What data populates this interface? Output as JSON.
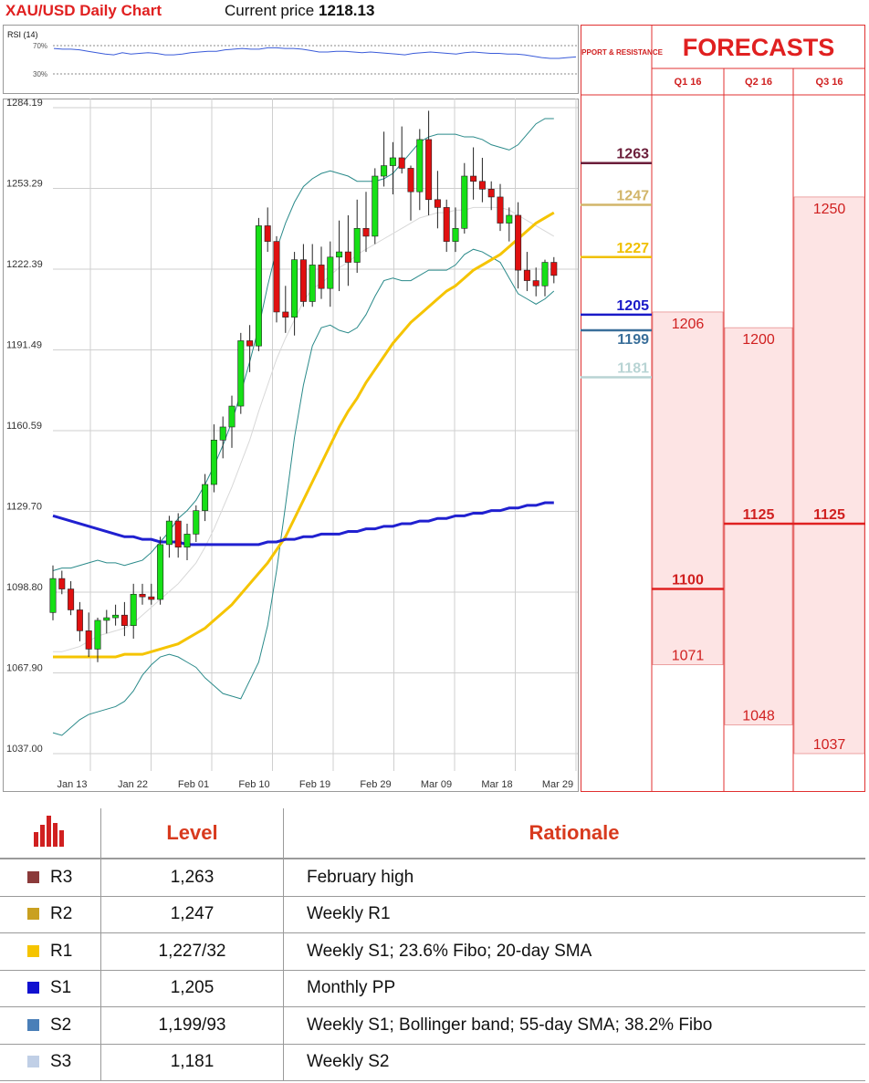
{
  "header": {
    "title": "XAU/USD Daily Chart",
    "price_label": "Current price ",
    "price_value": "1218.13"
  },
  "rsi": {
    "label": "RSI (14)",
    "levels": [
      "70%",
      "30%"
    ],
    "values": [
      66,
      65,
      65,
      64,
      62,
      60,
      58,
      57,
      60,
      58,
      59,
      60,
      59,
      57,
      57,
      58,
      60,
      61,
      62,
      62,
      64,
      65,
      66,
      65,
      65,
      67,
      67,
      66,
      66,
      65,
      63,
      61,
      61,
      62,
      62,
      61,
      60,
      61,
      60,
      59,
      58,
      57,
      59,
      60,
      61,
      60,
      59,
      58,
      60,
      61,
      60,
      59,
      59,
      58,
      58,
      57,
      55,
      53,
      52,
      52,
      53,
      54
    ]
  },
  "chart_data": {
    "type": "candlestick",
    "title": "XAU/USD Daily Chart",
    "y_ticks": [
      "1284.19",
      "1253.29",
      "1222.39",
      "1191.49",
      "1160.59",
      "1129.70",
      "1098.80",
      "1067.90",
      "1037.00"
    ],
    "ylim": [
      1037.0,
      1284.19
    ],
    "x_ticks": [
      "Jan 13",
      "Jan 22",
      "Feb 01",
      "Feb 10",
      "Feb 19",
      "Feb 29",
      "Mar 09",
      "Mar 18",
      "Mar 29"
    ],
    "candles": [
      [
        1091,
        1109,
        1088,
        1104
      ],
      [
        1104,
        1107,
        1098,
        1100
      ],
      [
        1100,
        1103,
        1090,
        1092
      ],
      [
        1092,
        1095,
        1080,
        1084
      ],
      [
        1084,
        1091,
        1074,
        1077
      ],
      [
        1077,
        1089,
        1072,
        1088
      ],
      [
        1088,
        1092,
        1083,
        1089
      ],
      [
        1089,
        1094,
        1086,
        1090
      ],
      [
        1090,
        1095,
        1082,
        1086
      ],
      [
        1086,
        1102,
        1081,
        1098
      ],
      [
        1098,
        1102,
        1094,
        1097
      ],
      [
        1097,
        1102,
        1094,
        1096
      ],
      [
        1096,
        1120,
        1094,
        1117
      ],
      [
        1117,
        1128,
        1112,
        1126
      ],
      [
        1126,
        1129,
        1112,
        1116
      ],
      [
        1116,
        1125,
        1111,
        1121
      ],
      [
        1121,
        1132,
        1118,
        1130
      ],
      [
        1130,
        1144,
        1126,
        1140
      ],
      [
        1140,
        1163,
        1137,
        1157
      ],
      [
        1157,
        1166,
        1150,
        1162
      ],
      [
        1162,
        1174,
        1154,
        1170
      ],
      [
        1170,
        1198,
        1167,
        1195
      ],
      [
        1195,
        1201,
        1183,
        1193
      ],
      [
        1193,
        1242,
        1191,
        1239
      ],
      [
        1239,
        1246,
        1229,
        1233
      ],
      [
        1233,
        1235,
        1202,
        1206
      ],
      [
        1206,
        1216,
        1198,
        1204
      ],
      [
        1204,
        1229,
        1197,
        1226
      ],
      [
        1226,
        1232,
        1208,
        1210
      ],
      [
        1210,
        1232,
        1208,
        1224
      ],
      [
        1224,
        1231,
        1211,
        1215
      ],
      [
        1215,
        1233,
        1208,
        1227
      ],
      [
        1227,
        1241,
        1214,
        1229
      ],
      [
        1229,
        1243,
        1216,
        1225
      ],
      [
        1225,
        1249,
        1221,
        1238
      ],
      [
        1238,
        1252,
        1229,
        1235
      ],
      [
        1235,
        1261,
        1232,
        1258
      ],
      [
        1258,
        1275,
        1254,
        1262
      ],
      [
        1262,
        1271,
        1251,
        1265
      ],
      [
        1265,
        1277,
        1259,
        1261
      ],
      [
        1261,
        1262,
        1241,
        1252
      ],
      [
        1252,
        1276,
        1245,
        1272
      ],
      [
        1272,
        1283,
        1243,
        1249
      ],
      [
        1249,
        1260,
        1238,
        1246
      ],
      [
        1246,
        1249,
        1229,
        1233
      ],
      [
        1233,
        1246,
        1229,
        1238
      ],
      [
        1238,
        1263,
        1236,
        1258
      ],
      [
        1258,
        1269,
        1249,
        1256
      ],
      [
        1256,
        1265,
        1248,
        1253
      ],
      [
        1253,
        1256,
        1245,
        1250
      ],
      [
        1250,
        1255,
        1237,
        1240
      ],
      [
        1240,
        1246,
        1233,
        1243
      ],
      [
        1243,
        1248,
        1215,
        1222
      ],
      [
        1222,
        1229,
        1214,
        1218
      ],
      [
        1218,
        1223,
        1212,
        1216
      ],
      [
        1216,
        1226,
        1212,
        1225
      ],
      [
        1225,
        1227,
        1217,
        1220
      ]
    ],
    "upper_band": [
      1107,
      1108,
      1108,
      1109,
      1110,
      1111,
      1110,
      1110,
      1109,
      1110,
      1111,
      1114,
      1118,
      1122,
      1127,
      1130,
      1134,
      1140,
      1147,
      1155,
      1164,
      1175,
      1187,
      1200,
      1216,
      1230,
      1240,
      1248,
      1254,
      1257,
      1259,
      1260,
      1259,
      1258,
      1256,
      1256,
      1256,
      1257,
      1259,
      1263,
      1267,
      1271,
      1273,
      1274,
      1274,
      1274,
      1273,
      1273,
      1272,
      1270,
      1269,
      1268,
      1270,
      1274,
      1278,
      1280,
      1280
    ],
    "lower_band": [
      1045,
      1044,
      1047,
      1050,
      1052,
      1053,
      1054,
      1055,
      1057,
      1061,
      1067,
      1071,
      1074,
      1075,
      1074,
      1072,
      1070,
      1066,
      1063,
      1060,
      1059,
      1058,
      1065,
      1072,
      1086,
      1107,
      1132,
      1158,
      1178,
      1193,
      1200,
      1201,
      1199,
      1198,
      1200,
      1205,
      1212,
      1218,
      1219,
      1218,
      1218,
      1220,
      1222,
      1222,
      1222,
      1224,
      1228,
      1230,
      1229,
      1227,
      1225,
      1219,
      1213,
      1211,
      1209,
      1211,
      1214
    ],
    "middle_band": [
      1076,
      1076,
      1077,
      1078,
      1080,
      1082,
      1083,
      1084,
      1085,
      1087,
      1090,
      1093,
      1096,
      1099,
      1102,
      1106,
      1110,
      1116,
      1123,
      1131,
      1139,
      1148,
      1157,
      1168,
      1178,
      1188,
      1196,
      1203,
      1210,
      1215,
      1217,
      1220,
      1223,
      1225,
      1228,
      1230,
      1232,
      1234,
      1236,
      1238,
      1240,
      1242,
      1243,
      1244,
      1244,
      1245,
      1245,
      1246,
      1246,
      1246,
      1246,
      1245,
      1243,
      1241,
      1239,
      1237,
      1235
    ],
    "sma55": [
      1074,
      1074,
      1074,
      1074,
      1074,
      1074,
      1074,
      1074,
      1075,
      1075,
      1075,
      1076,
      1077,
      1078,
      1079,
      1081,
      1083,
      1085,
      1088,
      1091,
      1094,
      1098,
      1102,
      1106,
      1110,
      1115,
      1120,
      1127,
      1134,
      1141,
      1148,
      1155,
      1162,
      1168,
      1173,
      1179,
      1184,
      1189,
      1194,
      1198,
      1202,
      1205,
      1208,
      1211,
      1214,
      1216,
      1219,
      1222,
      1224,
      1226,
      1228,
      1231,
      1234,
      1237,
      1240,
      1242,
      1244
    ],
    "sma200": [
      1128,
      1127,
      1126,
      1125,
      1124,
      1123,
      1122,
      1121,
      1120,
      1120,
      1119,
      1119,
      1118,
      1118,
      1118,
      1117,
      1117,
      1117,
      1117,
      1117,
      1117,
      1117,
      1117,
      1117,
      1118,
      1118,
      1119,
      1119,
      1120,
      1120,
      1121,
      1121,
      1121,
      1122,
      1122,
      1123,
      1123,
      1124,
      1124,
      1125,
      1125,
      1126,
      1126,
      1127,
      1127,
      1128,
      1128,
      1129,
      1129,
      1130,
      1130,
      1131,
      1131,
      1132,
      1132,
      1133,
      1133
    ],
    "levels": [
      {
        "value": 1263,
        "label": "1263",
        "color": "#6b1e3a"
      },
      {
        "value": 1247,
        "label": "1247",
        "color": "#d2b56a"
      },
      {
        "value": 1227,
        "label": "1227",
        "color": "#f0c000"
      },
      {
        "value": 1205,
        "label": "1205",
        "color": "#1a1ac8"
      },
      {
        "value": 1199,
        "label": "1199",
        "color": "#3a6f9a"
      },
      {
        "value": 1181,
        "label": "1181",
        "color": "#b8d4d4"
      }
    ]
  },
  "forecasts": {
    "title": "FORECASTS",
    "side_header": "SUPPORT & RESISTANCE",
    "quarters": [
      {
        "label": "Q1 16",
        "top": "1206",
        "middle": "1100",
        "bottom": "1071"
      },
      {
        "label": "Q2 16",
        "top": "1200",
        "middle": "1125",
        "bottom": "1048"
      },
      {
        "label": "Q3 16",
        "top": "1250",
        "middle": "1125",
        "bottom": "1037"
      }
    ]
  },
  "table": {
    "headers": {
      "level": "Level",
      "rationale": "Rationale"
    },
    "rows": [
      {
        "name": "R3",
        "color": "#8b3a3a",
        "level": "1,263",
        "rationale": "February high"
      },
      {
        "name": "R2",
        "color": "#c9a020",
        "level": "1,247",
        "rationale": "Weekly R1"
      },
      {
        "name": "R1",
        "color": "#f5c400",
        "level": "1,227/32",
        "rationale": "Weekly S1; 23.6% Fibo; 20-day SMA"
      },
      {
        "name": "S1",
        "color": "#1010d0",
        "level": "1,205",
        "rationale": "Monthly PP"
      },
      {
        "name": "S2",
        "color": "#4a7fb8",
        "level": "1,199/93",
        "rationale": "Weekly S1; Bollinger band; 55-day SMA; 38.2% Fibo"
      },
      {
        "name": "S3",
        "color": "#c0cfe6",
        "level": "1,181",
        "rationale": "Weekly S2"
      }
    ]
  }
}
